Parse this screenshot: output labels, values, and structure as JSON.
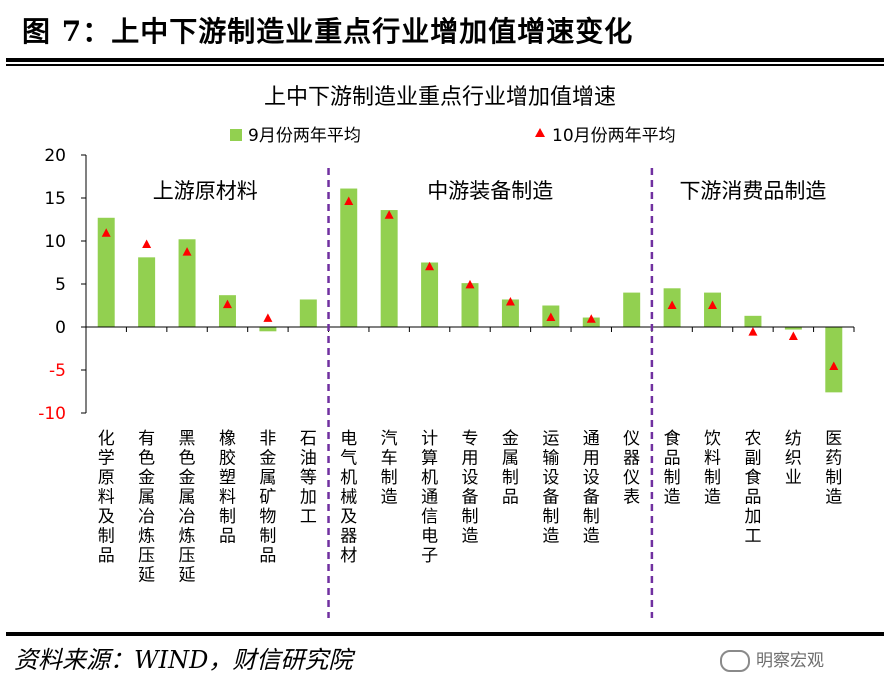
{
  "figure": {
    "title": "图 7：上中下游制造业重点行业增加值增速变化",
    "source": "资料来源：WIND，财信研究院",
    "watermark": "明察宏观"
  },
  "colors": {
    "bar": "#92d050",
    "marker": "#ff0000",
    "divider": "#7030a0",
    "negative_tick": "#ff0000"
  },
  "chart_data": {
    "type": "bar",
    "title": "上中下游制造业重点行业增加值增速",
    "ylim": [
      -10,
      20
    ],
    "yticks": [
      20,
      15,
      10,
      5,
      0,
      -5,
      -10
    ],
    "grid": false,
    "legend_position": "top",
    "categories": [
      "化学原料及制品",
      "有色金属冶炼压延",
      "黑色金属冶炼压延",
      "橡胶塑料制品",
      "非金属矿物制品",
      "石油等加工",
      "电气机械及器材",
      "汽车制造",
      "计算机通信电子",
      "专用设备制造",
      "金属制品",
      "运输设备制造",
      "通用设备制造",
      "仪器仪表",
      "食品制造",
      "饮料制造",
      "农副食品加工",
      "纺织业",
      "医药制造"
    ],
    "series": [
      {
        "name": "9月份两年平均",
        "kind": "bar",
        "values": [
          12.7,
          8.1,
          10.2,
          3.7,
          -0.5,
          3.2,
          16.1,
          13.6,
          7.5,
          5.1,
          3.2,
          2.5,
          1.1,
          4.0,
          4.5,
          4.0,
          1.3,
          -0.3,
          -7.6
        ]
      },
      {
        "name": "10月份两年平均",
        "kind": "marker",
        "values": [
          10.9,
          9.6,
          8.7,
          2.6,
          1.0,
          null,
          14.6,
          13.0,
          7.0,
          4.9,
          2.9,
          1.1,
          0.9,
          null,
          2.5,
          2.5,
          -0.6,
          -1.1,
          -4.6
        ]
      }
    ],
    "groups": [
      {
        "label": "上游原材料",
        "count": 6
      },
      {
        "label": "中游装备制造",
        "count": 8
      },
      {
        "label": "下游消费品制造",
        "count": 5
      }
    ]
  }
}
